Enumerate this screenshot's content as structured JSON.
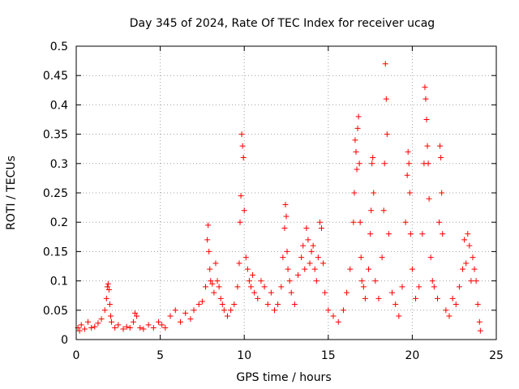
{
  "chart_data": {
    "type": "scatter",
    "title": "Day 345 of 2024, Rate Of TEC Index for receiver ucag",
    "xlabel": "GPS time / hours",
    "ylabel": "ROTI / TECUs",
    "xlim": [
      0,
      25
    ],
    "ylim": [
      0,
      0.5
    ],
    "xticks": [
      0,
      5,
      10,
      15,
      20,
      25
    ],
    "xtick_labels": [
      "0",
      "5",
      "10",
      "15",
      "20",
      "25"
    ],
    "yticks": [
      0,
      0.05,
      0.1,
      0.15,
      0.2,
      0.25,
      0.3,
      0.35,
      0.4,
      0.45,
      0.5
    ],
    "ytick_labels": [
      "0",
      "0.05",
      "0.1",
      "0.15",
      "0.2",
      "0.25",
      "0.3",
      "0.35",
      "0.4",
      "0.45",
      "0.5"
    ],
    "grid": true,
    "marker": "+",
    "marker_color": "#ff0000",
    "series": [
      {
        "x": [
          0.1,
          0.2,
          0.3,
          0.5,
          0.7,
          0.9,
          1.1,
          1.3,
          1.5,
          1.7,
          1.8,
          1.85,
          1.9,
          1.95,
          2.0,
          2.05,
          2.1,
          2.3,
          2.5,
          2.8,
          3.0,
          3.2,
          3.4,
          3.5,
          3.6,
          3.8,
          4.0,
          4.3,
          4.6,
          4.9,
          5.1,
          5.3,
          5.6,
          5.9,
          6.2,
          6.5,
          6.8,
          7.0,
          7.3,
          7.5,
          7.7,
          7.8,
          7.85,
          7.9,
          7.95,
          8.0,
          8.1,
          8.2,
          8.3,
          8.4,
          8.5,
          8.6,
          8.7,
          8.8,
          9.0,
          9.2,
          9.4,
          9.6,
          9.7,
          9.75,
          9.8,
          9.85,
          9.9,
          9.95,
          10.0,
          10.1,
          10.2,
          10.3,
          10.4,
          10.5,
          10.6,
          10.8,
          11.0,
          11.2,
          11.4,
          11.6,
          11.8,
          12.0,
          12.2,
          12.3,
          12.4,
          12.45,
          12.5,
          12.55,
          12.6,
          12.7,
          12.8,
          13.0,
          13.2,
          13.4,
          13.5,
          13.6,
          13.7,
          13.8,
          13.9,
          14.0,
          14.1,
          14.2,
          14.3,
          14.4,
          14.5,
          14.6,
          14.7,
          14.8,
          15.0,
          15.3,
          15.6,
          15.9,
          16.1,
          16.3,
          16.5,
          16.55,
          16.6,
          16.65,
          16.7,
          16.75,
          16.8,
          16.85,
          16.9,
          16.95,
          17.0,
          17.1,
          17.2,
          17.4,
          17.5,
          17.55,
          17.6,
          17.65,
          17.7,
          17.8,
          18.0,
          18.2,
          18.3,
          18.35,
          18.4,
          18.45,
          18.5,
          18.6,
          18.8,
          19.0,
          19.2,
          19.4,
          19.6,
          19.7,
          19.75,
          19.8,
          19.85,
          19.9,
          20.0,
          20.2,
          20.4,
          20.6,
          20.7,
          20.75,
          20.8,
          20.85,
          20.9,
          20.95,
          21.0,
          21.1,
          21.2,
          21.3,
          21.5,
          21.6,
          21.65,
          21.7,
          21.75,
          21.8,
          22.0,
          22.2,
          22.4,
          22.6,
          22.8,
          23.0,
          23.1,
          23.2,
          23.3,
          23.4,
          23.5,
          23.6,
          23.7,
          23.8,
          23.9,
          24.0,
          24.05
        ],
        "y": [
          0.02,
          0.015,
          0.025,
          0.018,
          0.03,
          0.02,
          0.022,
          0.028,
          0.035,
          0.05,
          0.07,
          0.09,
          0.095,
          0.085,
          0.06,
          0.04,
          0.03,
          0.02,
          0.025,
          0.018,
          0.022,
          0.02,
          0.03,
          0.045,
          0.04,
          0.02,
          0.018,
          0.025,
          0.02,
          0.03,
          0.025,
          0.02,
          0.04,
          0.05,
          0.03,
          0.045,
          0.035,
          0.05,
          0.06,
          0.065,
          0.09,
          0.17,
          0.195,
          0.15,
          0.12,
          0.1,
          0.095,
          0.08,
          0.13,
          0.1,
          0.09,
          0.07,
          0.06,
          0.05,
          0.04,
          0.05,
          0.06,
          0.09,
          0.13,
          0.2,
          0.245,
          0.35,
          0.33,
          0.31,
          0.22,
          0.14,
          0.12,
          0.1,
          0.09,
          0.11,
          0.08,
          0.07,
          0.1,
          0.09,
          0.06,
          0.08,
          0.05,
          0.06,
          0.09,
          0.14,
          0.19,
          0.23,
          0.21,
          0.15,
          0.12,
          0.1,
          0.08,
          0.06,
          0.11,
          0.14,
          0.16,
          0.12,
          0.19,
          0.17,
          0.13,
          0.15,
          0.16,
          0.12,
          0.1,
          0.14,
          0.2,
          0.19,
          0.13,
          0.08,
          0.05,
          0.04,
          0.03,
          0.05,
          0.08,
          0.12,
          0.2,
          0.25,
          0.34,
          0.32,
          0.29,
          0.36,
          0.38,
          0.3,
          0.2,
          0.14,
          0.1,
          0.09,
          0.07,
          0.12,
          0.18,
          0.22,
          0.3,
          0.31,
          0.25,
          0.1,
          0.07,
          0.14,
          0.22,
          0.3,
          0.47,
          0.41,
          0.35,
          0.18,
          0.08,
          0.06,
          0.04,
          0.09,
          0.2,
          0.28,
          0.32,
          0.3,
          0.25,
          0.18,
          0.12,
          0.07,
          0.09,
          0.18,
          0.3,
          0.43,
          0.41,
          0.375,
          0.33,
          0.3,
          0.24,
          0.14,
          0.1,
          0.09,
          0.07,
          0.2,
          0.33,
          0.31,
          0.25,
          0.18,
          0.05,
          0.04,
          0.07,
          0.06,
          0.09,
          0.12,
          0.17,
          0.13,
          0.18,
          0.16,
          0.1,
          0.14,
          0.12,
          0.1,
          0.06,
          0.03,
          0.015
        ]
      }
    ]
  }
}
